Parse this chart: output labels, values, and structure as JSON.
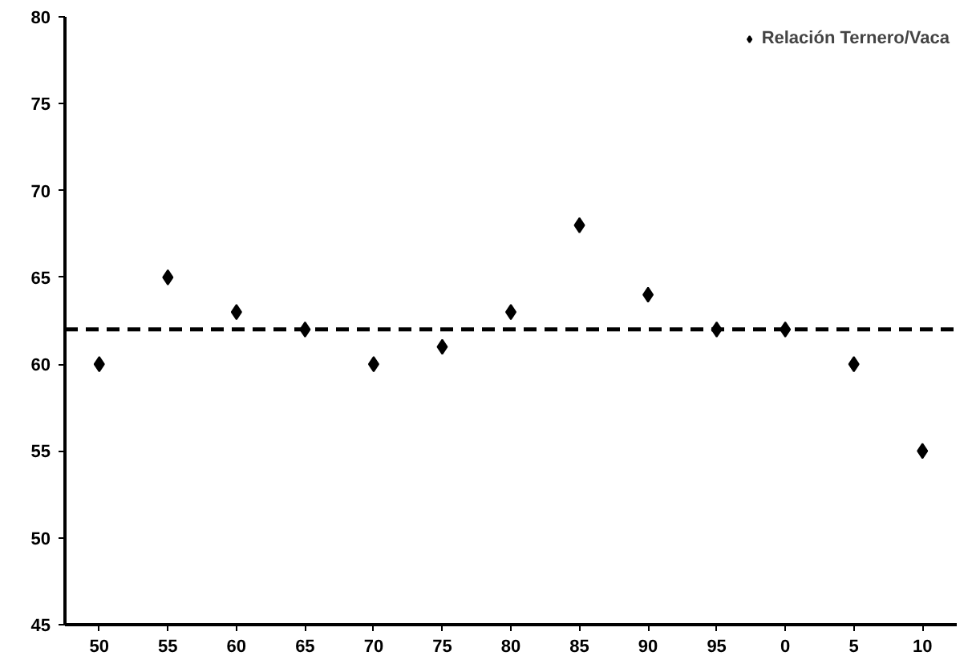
{
  "chart_data": {
    "type": "scatter",
    "categories": [
      "50",
      "55",
      "60",
      "65",
      "70",
      "75",
      "80",
      "85",
      "90",
      "95",
      "0",
      "5",
      "10"
    ],
    "series": [
      {
        "name": "Relación Ternero/Vaca",
        "color": "#000000",
        "values": [
          60,
          65,
          63,
          62,
          60,
          61,
          63,
          68,
          64,
          62,
          62,
          60,
          55
        ]
      }
    ],
    "ylim": [
      45,
      80
    ],
    "yticks": [
      45,
      50,
      55,
      60,
      65,
      70,
      75,
      80
    ],
    "marker": "diamond",
    "legend": "top right",
    "grid": false,
    "ref_lines": [
      {
        "axis": "y",
        "value": 62,
        "color": "#000000",
        "line_style": "dashed"
      }
    ]
  }
}
